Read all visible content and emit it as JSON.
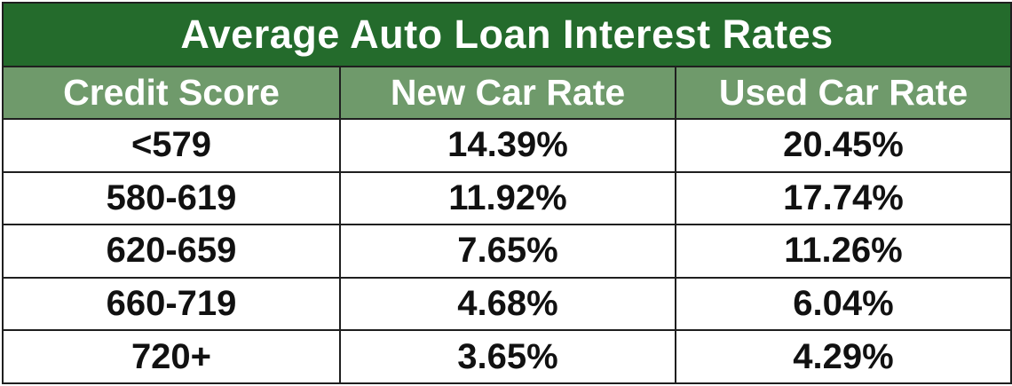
{
  "chart_data": {
    "type": "table",
    "title": "Average Auto Loan Interest Rates",
    "columns": [
      "Credit Score",
      "New Car Rate",
      "Used Car Rate"
    ],
    "rows": [
      [
        "<579",
        "14.39%",
        "20.45%"
      ],
      [
        "580-619",
        "11.92%",
        "17.74%"
      ],
      [
        "620-659",
        "7.65%",
        "11.26%"
      ],
      [
        "660-719",
        "4.68%",
        "6.04%"
      ],
      [
        "720+",
        "3.65%",
        "4.29%"
      ]
    ]
  },
  "colors": {
    "title_bg": "#246b2c",
    "header_bg": "#6f9a6b",
    "text_light": "#ffffff",
    "text_dark": "#111111",
    "border": "#1f1f1f"
  }
}
